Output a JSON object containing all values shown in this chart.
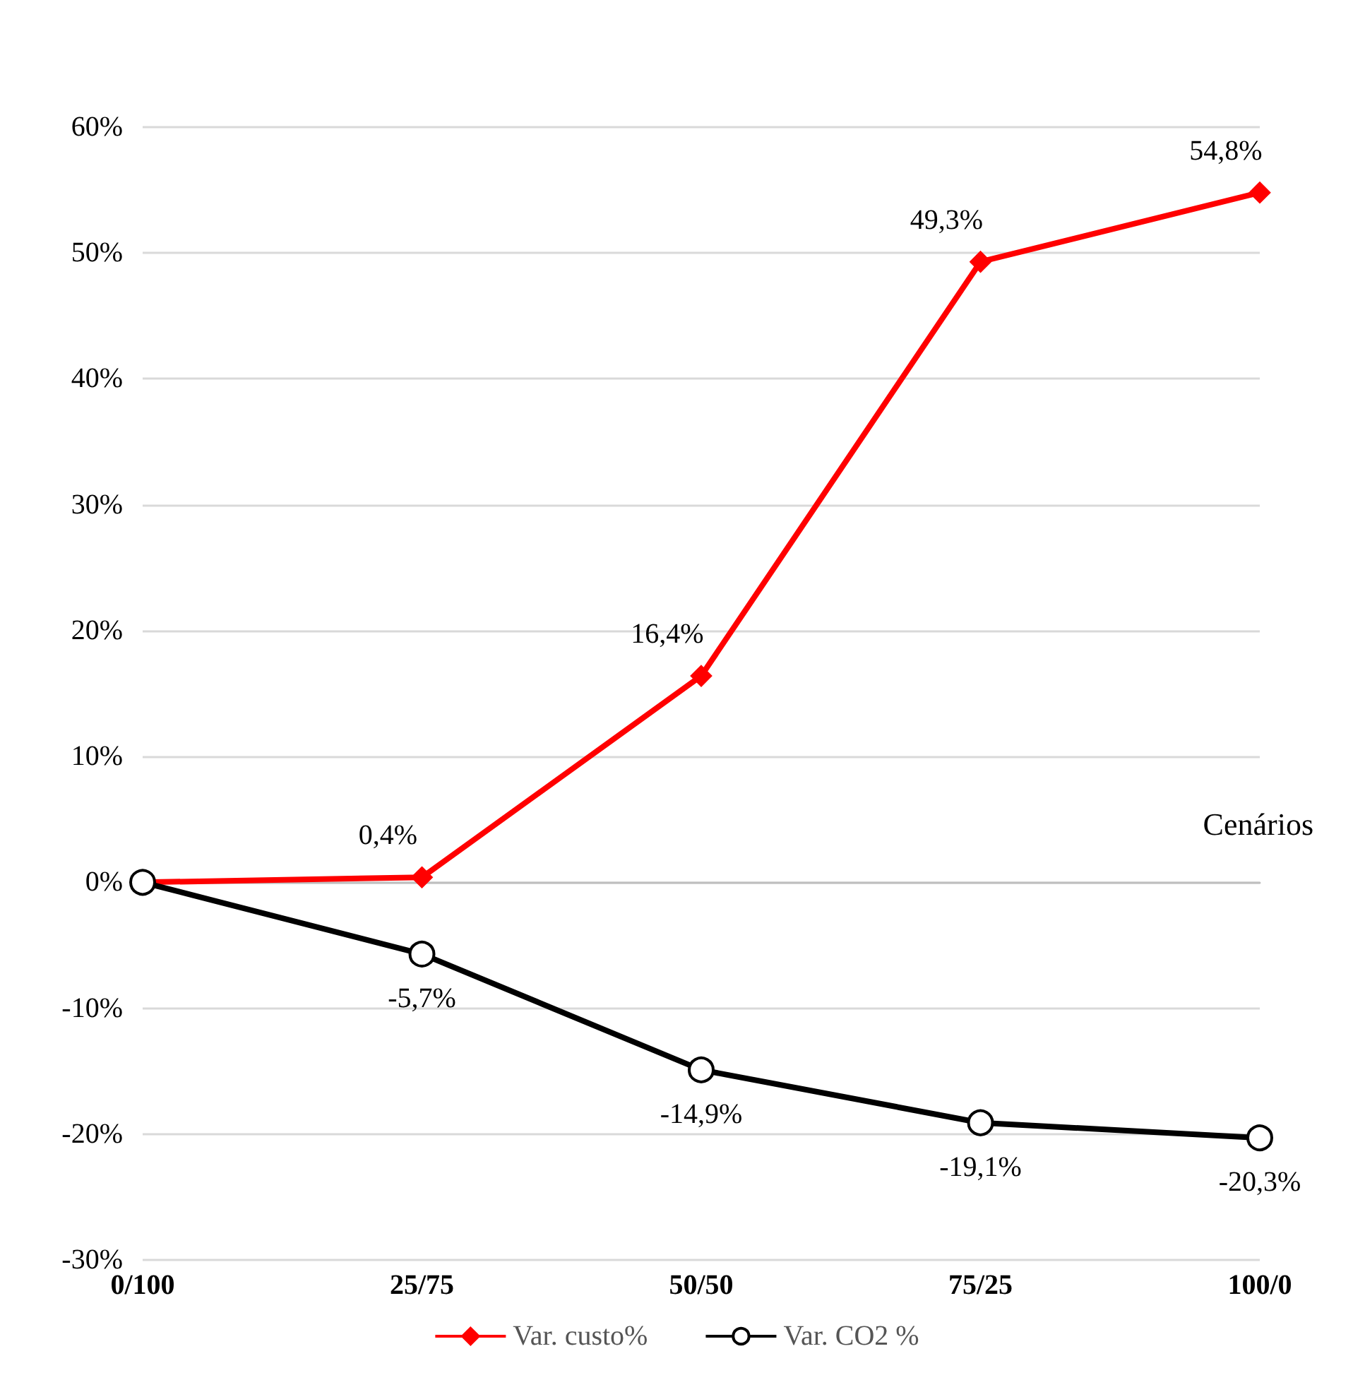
{
  "chart_data": {
    "type": "line",
    "xlabel": "Cenários",
    "categories": [
      "0/100",
      "25/75",
      "50/50",
      "75/25",
      "100/0"
    ],
    "series": [
      {
        "name": "Var. custo%",
        "color": "#ff0000",
        "marker": "diamond",
        "values": [
          0,
          0.4,
          16.4,
          49.3,
          54.8
        ],
        "value_labels": [
          null,
          "0,4%",
          "16,4%",
          "49,3%",
          "54,8%"
        ]
      },
      {
        "name": "Var. CO2 %",
        "color": "#000000",
        "marker": "circle",
        "values": [
          0,
          -5.7,
          -14.9,
          -19.1,
          -20.3
        ],
        "value_labels": [
          null,
          "-5,7%",
          "-14,9%",
          "-19,1%",
          "-20,3%"
        ]
      }
    ],
    "ylim": [
      -30,
      60
    ],
    "yticks": [
      {
        "value": -30,
        "label": "-30%"
      },
      {
        "value": -20,
        "label": "-20%"
      },
      {
        "value": -10,
        "label": "-10%"
      },
      {
        "value": 0,
        "label": "0%"
      },
      {
        "value": 10,
        "label": "10%"
      },
      {
        "value": 20,
        "label": "20%"
      },
      {
        "value": 30,
        "label": "30%"
      },
      {
        "value": 40,
        "label": "40%"
      },
      {
        "value": 50,
        "label": "50%"
      },
      {
        "value": 60,
        "label": "60%"
      }
    ],
    "grid": "y",
    "legend": "bottom",
    "line_style": "solid"
  }
}
